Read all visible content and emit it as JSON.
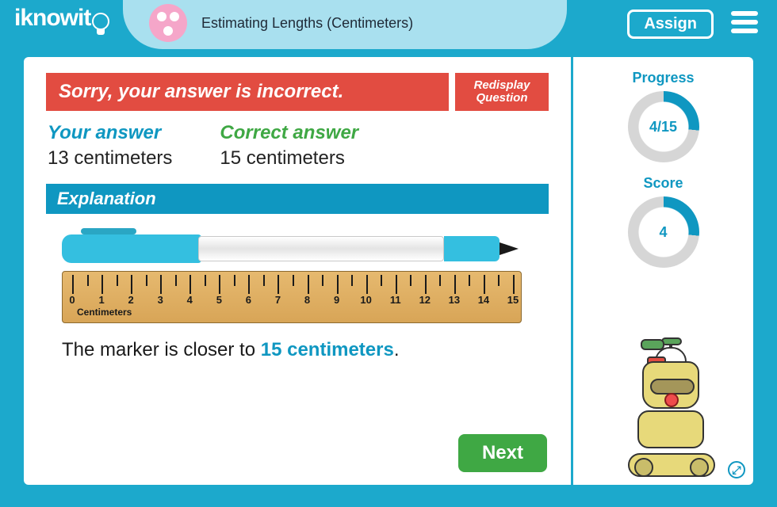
{
  "colors": {
    "app_bg": "#1ca9cc",
    "header_curve": "#a9e0ef",
    "pink": "#f5a6c9",
    "danger": "#e24c41",
    "primary": "#0f97c1",
    "success": "#3fa844",
    "ruler_wood_top": "#e6b96f",
    "ruler_wood_bottom": "#d8a557",
    "marker_color": "#34bfe0",
    "ring_track": "#d6d6d6"
  },
  "header": {
    "logo_text": "iknowit",
    "lesson_title": "Estimating Lengths (Centimeters)",
    "assign_label": "Assign"
  },
  "feedback": {
    "banner": "Sorry, your answer is incorrect.",
    "redisplay_label": "Redisplay Question",
    "your_answer_heading": "Your answer",
    "your_answer_value": "13 centimeters",
    "correct_answer_heading": "Correct answer",
    "correct_answer_value": "15 centimeters"
  },
  "explanation": {
    "heading": "Explanation",
    "sentence_prefix": "The marker is closer to ",
    "sentence_highlight": "15 centimeters",
    "sentence_suffix": "."
  },
  "ruler": {
    "unit_label": "Centimeters",
    "min": 0,
    "max": 15,
    "major_step": 1,
    "minor_per_major": 1,
    "label_fontsize": 13
  },
  "buttons": {
    "next": "Next"
  },
  "progress": {
    "title": "Progress",
    "done": 4,
    "total": 15,
    "label": "4/15",
    "ring_size": 90,
    "ring_thickness": 14
  },
  "score": {
    "title": "Score",
    "value": 4,
    "total": 15,
    "label": "4",
    "ring_size": 90,
    "ring_thickness": 14
  }
}
